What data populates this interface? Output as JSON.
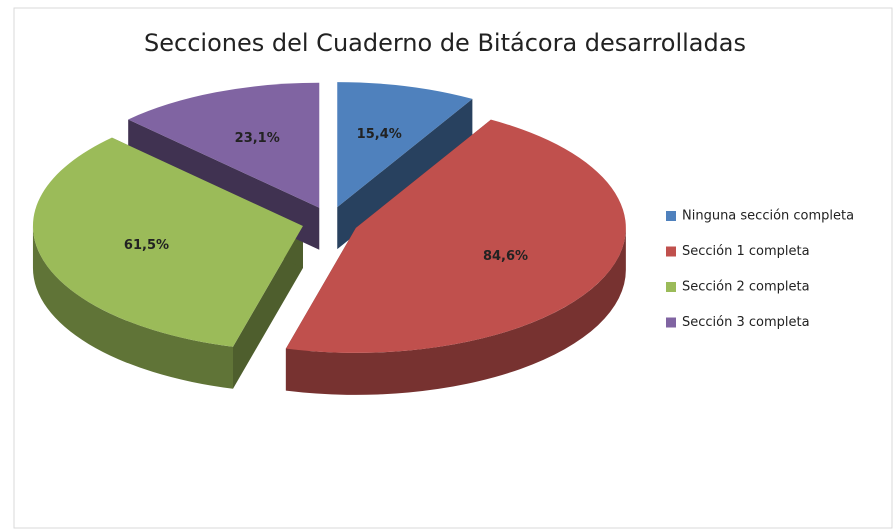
{
  "chart_data": {
    "type": "pie",
    "title": "Secciones del Cuaderno de Bitácora desarrolladas",
    "categories": [
      "Ninguna sección completa",
      "Sección 1 completa",
      "Sección 2 completa",
      "Sección 3 completa"
    ],
    "values": [
      15.4,
      84.6,
      61.5,
      23.1
    ],
    "value_labels": [
      "15,4%",
      "84,6%",
      "61,5%",
      "23,1%"
    ],
    "colors": [
      "#4f81bd",
      "#c0504d",
      "#9bbb59",
      "#8064a2"
    ],
    "legend": "right"
  }
}
